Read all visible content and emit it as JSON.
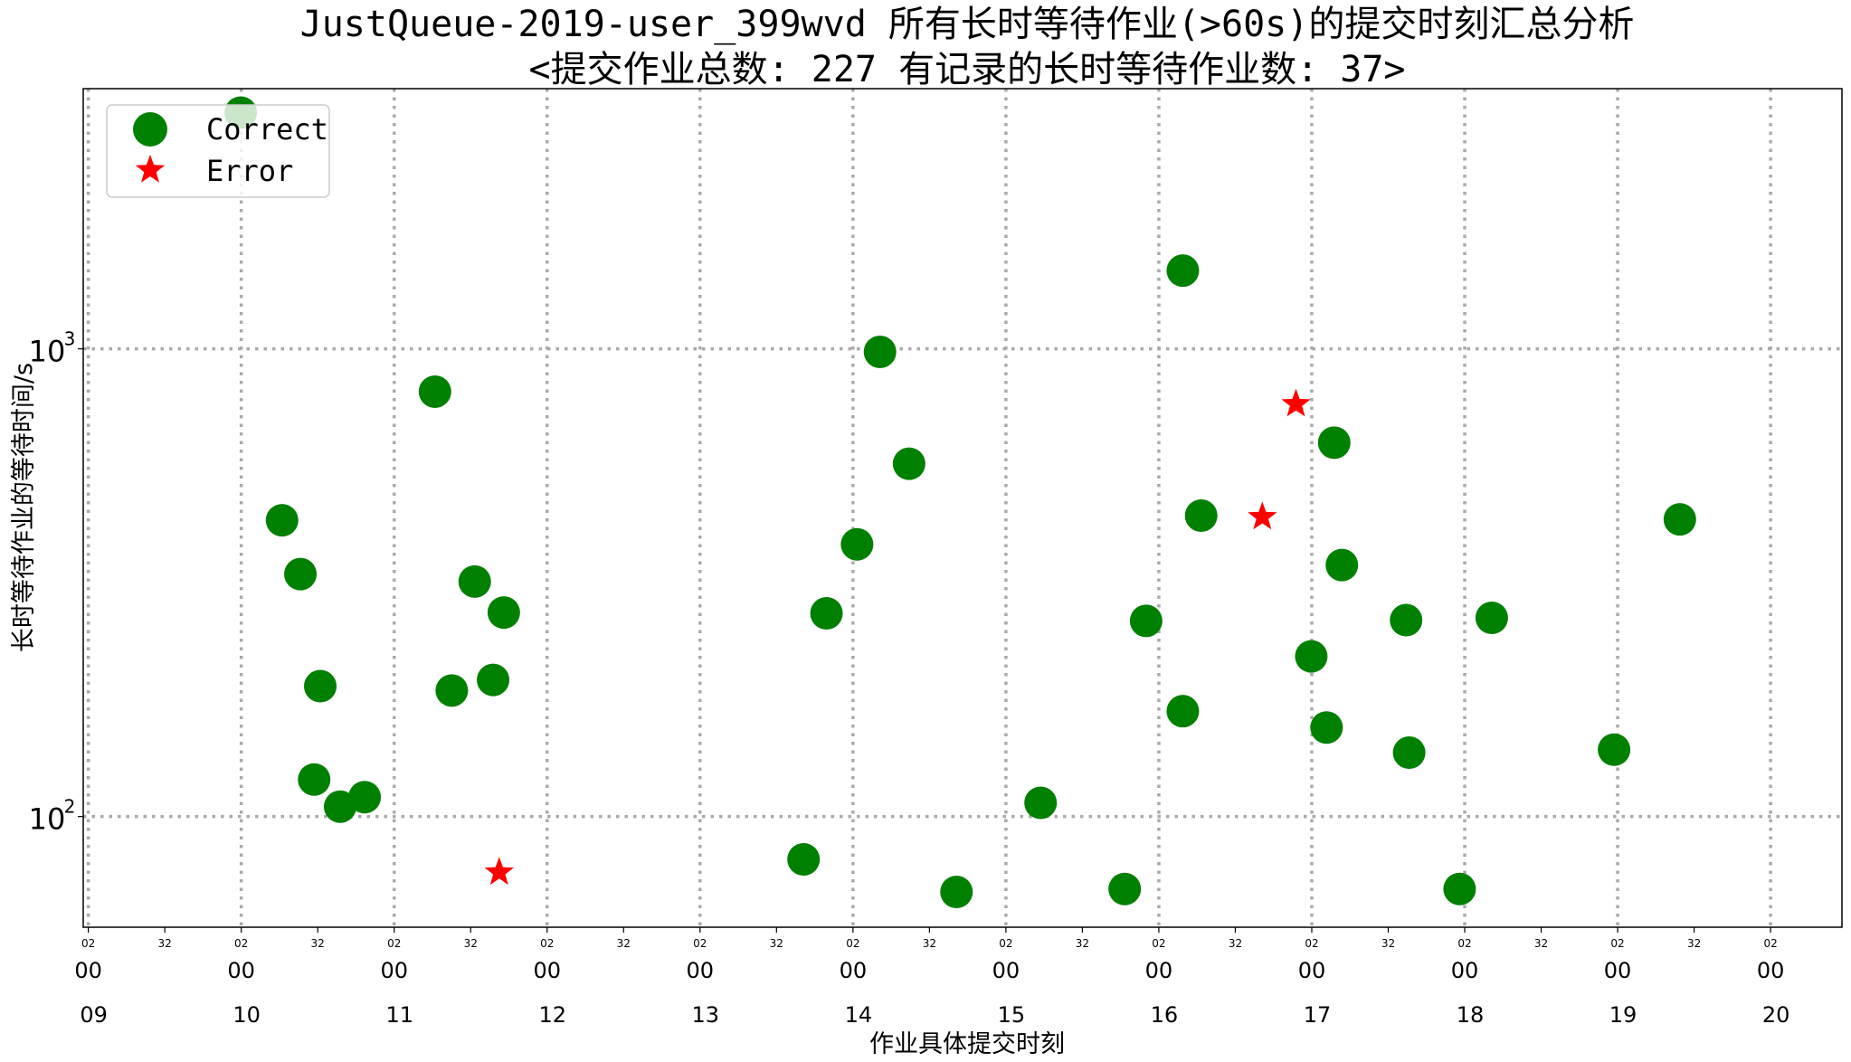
{
  "chart_data": {
    "type": "scatter",
    "title": "JustQueue-2019-user_399wvd 所有长时等待作业(>60s)的提交时刻汇总分析",
    "subtitle": "<提交作业总数: 227  有记录的长时等待作业数: 37>",
    "xlabel": "作业具体提交时刻",
    "ylabel": "长时等待作业的等待时间/s",
    "y_scale": "log",
    "ylim": [
      58,
      3600
    ],
    "xlim_hours": [
      9.0,
      20.5
    ],
    "grid": true,
    "legend_placement": "upper-left",
    "x_ticks": [
      {
        "hour": 9.0333,
        "sec": "02",
        "min": "00",
        "hr": "09"
      },
      {
        "hour": 9.5333,
        "sec": "32"
      },
      {
        "hour": 10.0333,
        "sec": "02",
        "min": "00",
        "hr": "10"
      },
      {
        "hour": 10.5333,
        "sec": "32"
      },
      {
        "hour": 11.0333,
        "sec": "02",
        "min": "00",
        "hr": "11"
      },
      {
        "hour": 11.5333,
        "sec": "32"
      },
      {
        "hour": 12.0333,
        "sec": "02",
        "min": "00",
        "hr": "12"
      },
      {
        "hour": 12.5333,
        "sec": "32"
      },
      {
        "hour": 13.0333,
        "sec": "02",
        "min": "00",
        "hr": "13"
      },
      {
        "hour": 13.5333,
        "sec": "32"
      },
      {
        "hour": 14.0333,
        "sec": "02",
        "min": "00",
        "hr": "14"
      },
      {
        "hour": 14.5333,
        "sec": "32"
      },
      {
        "hour": 15.0333,
        "sec": "02",
        "min": "00",
        "hr": "15"
      },
      {
        "hour": 15.5333,
        "sec": "32"
      },
      {
        "hour": 16.0333,
        "sec": "02",
        "min": "00",
        "hr": "16"
      },
      {
        "hour": 16.5333,
        "sec": "32"
      },
      {
        "hour": 17.0333,
        "sec": "02",
        "min": "00",
        "hr": "17"
      },
      {
        "hour": 17.5333,
        "sec": "32"
      },
      {
        "hour": 18.0333,
        "sec": "02",
        "min": "00",
        "hr": "18"
      },
      {
        "hour": 18.5333,
        "sec": "32"
      },
      {
        "hour": 19.0333,
        "sec": "02",
        "min": "00",
        "hr": "19"
      },
      {
        "hour": 19.5333,
        "sec": "32"
      },
      {
        "hour": 20.0333,
        "sec": "02",
        "min": "00",
        "hr": "20"
      }
    ],
    "y_ticks": [
      {
        "value": 100,
        "base": "10",
        "exp": "2"
      },
      {
        "value": 1000,
        "base": "10",
        "exp": "3"
      }
    ],
    "series": [
      {
        "name": "Correct",
        "color": "#008000",
        "marker": "circle",
        "points": [
          [
            10.03,
            3200
          ],
          [
            10.3,
            430
          ],
          [
            10.42,
            330
          ],
          [
            10.55,
            190
          ],
          [
            10.51,
            120
          ],
          [
            10.68,
            105
          ],
          [
            10.84,
            110
          ],
          [
            11.3,
            810
          ],
          [
            11.41,
            186
          ],
          [
            11.56,
            318
          ],
          [
            11.68,
            196
          ],
          [
            11.75,
            273
          ],
          [
            13.71,
            81
          ],
          [
            13.86,
            272
          ],
          [
            14.06,
            382
          ],
          [
            14.21,
            985
          ],
          [
            14.4,
            568
          ],
          [
            14.71,
            69
          ],
          [
            15.26,
            107
          ],
          [
            15.81,
            70
          ],
          [
            15.95,
            262
          ],
          [
            16.19,
            1470
          ],
          [
            16.19,
            168
          ],
          [
            16.31,
            440
          ],
          [
            17.03,
            220
          ],
          [
            17.13,
            155
          ],
          [
            17.18,
            630
          ],
          [
            17.23,
            345
          ],
          [
            17.65,
            263
          ],
          [
            17.67,
            137
          ],
          [
            18.0,
            70
          ],
          [
            18.21,
            266
          ],
          [
            19.01,
            139
          ],
          [
            19.44,
            432
          ]
        ]
      },
      {
        "name": "Error",
        "color": "#ff0000",
        "marker": "star",
        "points": [
          [
            11.72,
            76
          ],
          [
            16.71,
            437
          ],
          [
            16.93,
            762
          ]
        ]
      }
    ]
  }
}
